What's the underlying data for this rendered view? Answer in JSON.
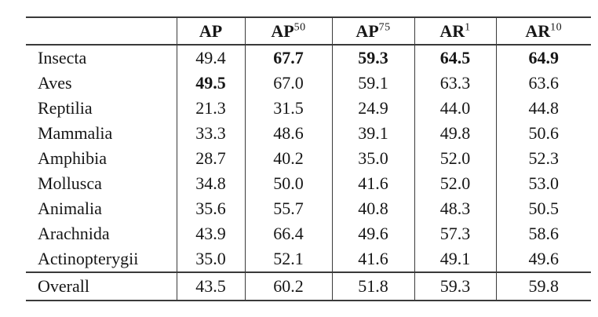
{
  "table": {
    "columns": [
      {
        "label": "",
        "sup": ""
      },
      {
        "label": "AP",
        "sup": ""
      },
      {
        "label": "AP",
        "sup": "50"
      },
      {
        "label": "AP",
        "sup": "75"
      },
      {
        "label": "AR",
        "sup": "1"
      },
      {
        "label": "AR",
        "sup": "10"
      }
    ],
    "rows": [
      {
        "label": "Insecta",
        "values": [
          "49.4",
          "67.7",
          "59.3",
          "64.5",
          "64.9"
        ],
        "bold": [
          false,
          true,
          true,
          true,
          true
        ]
      },
      {
        "label": "Aves",
        "values": [
          "49.5",
          "67.0",
          "59.1",
          "63.3",
          "63.6"
        ],
        "bold": [
          true,
          false,
          false,
          false,
          false
        ]
      },
      {
        "label": "Reptilia",
        "values": [
          "21.3",
          "31.5",
          "24.9",
          "44.0",
          "44.8"
        ],
        "bold": [
          false,
          false,
          false,
          false,
          false
        ]
      },
      {
        "label": "Mammalia",
        "values": [
          "33.3",
          "48.6",
          "39.1",
          "49.8",
          "50.6"
        ],
        "bold": [
          false,
          false,
          false,
          false,
          false
        ]
      },
      {
        "label": "Amphibia",
        "values": [
          "28.7",
          "40.2",
          "35.0",
          "52.0",
          "52.3"
        ],
        "bold": [
          false,
          false,
          false,
          false,
          false
        ]
      },
      {
        "label": "Mollusca",
        "values": [
          "34.8",
          "50.0",
          "41.6",
          "52.0",
          "53.0"
        ],
        "bold": [
          false,
          false,
          false,
          false,
          false
        ]
      },
      {
        "label": "Animalia",
        "values": [
          "35.6",
          "55.7",
          "40.8",
          "48.3",
          "50.5"
        ],
        "bold": [
          false,
          false,
          false,
          false,
          false
        ]
      },
      {
        "label": "Arachnida",
        "values": [
          "43.9",
          "66.4",
          "49.6",
          "57.3",
          "58.6"
        ],
        "bold": [
          false,
          false,
          false,
          false,
          false
        ]
      },
      {
        "label": "Actinopterygii",
        "values": [
          "35.0",
          "52.1",
          "41.6",
          "49.1",
          "49.6"
        ],
        "bold": [
          false,
          false,
          false,
          false,
          false
        ]
      },
      {
        "label": "Overall",
        "values": [
          "43.5",
          "60.2",
          "51.8",
          "59.3",
          "59.8"
        ],
        "bold": [
          false,
          false,
          false,
          false,
          false
        ]
      }
    ]
  },
  "chart_data": {
    "type": "table",
    "title": "",
    "columns": [
      "",
      "AP",
      "AP50",
      "AP75",
      "AR1",
      "AR10"
    ],
    "rows": [
      [
        "Insecta",
        49.4,
        67.7,
        59.3,
        64.5,
        64.9
      ],
      [
        "Aves",
        49.5,
        67.0,
        59.1,
        63.3,
        63.6
      ],
      [
        "Reptilia",
        21.3,
        31.5,
        24.9,
        44.0,
        44.8
      ],
      [
        "Mammalia",
        33.3,
        48.6,
        39.1,
        49.8,
        50.6
      ],
      [
        "Amphibia",
        28.7,
        40.2,
        35.0,
        52.0,
        52.3
      ],
      [
        "Mollusca",
        34.8,
        50.0,
        41.6,
        52.0,
        53.0
      ],
      [
        "Animalia",
        35.6,
        55.7,
        40.8,
        48.3,
        50.5
      ],
      [
        "Arachnida",
        43.9,
        66.4,
        49.6,
        57.3,
        58.6
      ],
      [
        "Actinopterygii",
        35.0,
        52.1,
        41.6,
        49.1,
        49.6
      ],
      [
        "Overall",
        43.5,
        60.2,
        51.8,
        59.3,
        59.8
      ]
    ]
  }
}
